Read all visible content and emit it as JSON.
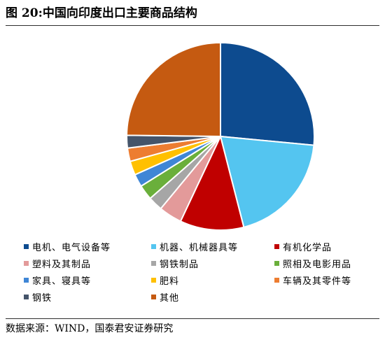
{
  "title": "图 20:中国向印度出口主要商品结构",
  "source": "数据来源：WIND，国泰君安证券研究",
  "chart_data": {
    "type": "pie",
    "title": "图 20:中国向印度出口主要商品结构",
    "start_angle_deg": 0,
    "direction": "clockwise",
    "legend_position": "bottom",
    "slices": [
      {
        "name": "电机、电气设备等",
        "value": 26.5,
        "color": "#0d4b8f"
      },
      {
        "name": "机器、机械器具等",
        "value": 19.5,
        "color": "#54c5f0"
      },
      {
        "name": "有机化学品",
        "value": 11.0,
        "color": "#c00000"
      },
      {
        "name": "塑料及其制品",
        "value": 4.0,
        "color": "#e39a9a"
      },
      {
        "name": "钢铁制品",
        "value": 2.5,
        "color": "#a6a6a6"
      },
      {
        "name": "照相及电影用品",
        "value": 2.6,
        "color": "#6aaf3b"
      },
      {
        "name": "家具、寝具等",
        "value": 2.2,
        "color": "#3f86d6"
      },
      {
        "name": "肥料",
        "value": 2.4,
        "color": "#ffc000"
      },
      {
        "name": "车辆及其零件等",
        "value": 2.3,
        "color": "#ed7d31"
      },
      {
        "name": "钢铁",
        "value": 2.2,
        "color": "#44546a"
      },
      {
        "name": "其他",
        "value": 24.8,
        "color": "#c55a11"
      }
    ]
  }
}
